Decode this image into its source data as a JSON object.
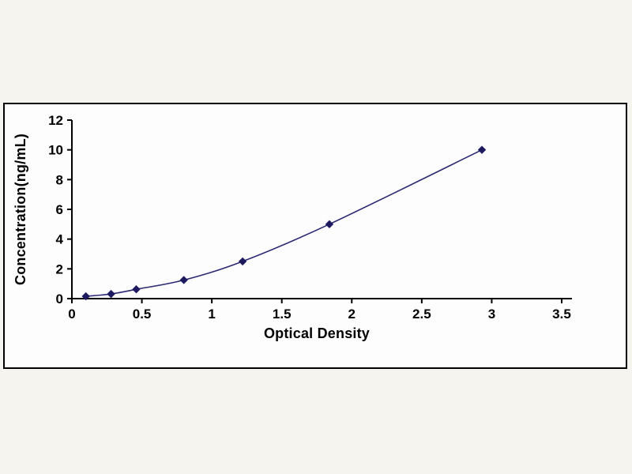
{
  "page": {
    "background": "#f5f4ee"
  },
  "chart_data": {
    "type": "line",
    "title": "",
    "xlabel": "Optical Density",
    "ylabel": "Concentration(ng/mL)",
    "x": [
      0.1,
      0.28,
      0.46,
      0.8,
      1.22,
      1.84,
      2.93
    ],
    "y": [
      0.156,
      0.312,
      0.625,
      1.25,
      2.5,
      5,
      10
    ],
    "xlim": [
      0,
      3.5
    ],
    "ylim": [
      0,
      12
    ],
    "xticks": [
      0,
      0.5,
      1,
      1.5,
      2,
      2.5,
      3,
      3.5
    ],
    "xtick_labels": [
      "0",
      "0.5",
      "1",
      "1.5",
      "2",
      "2.5",
      "3",
      "3.5"
    ],
    "yticks": [
      0,
      2,
      4,
      6,
      8,
      10,
      12
    ],
    "ytick_labels": [
      "0",
      "2",
      "4",
      "6",
      "8",
      "10",
      "12"
    ],
    "grid": false,
    "legend": null,
    "marker": "diamond",
    "line_color": "#2b2a72",
    "marker_color": "#1d1a60",
    "axis_color": "#000000",
    "plot_background": "#fdfdfd"
  }
}
